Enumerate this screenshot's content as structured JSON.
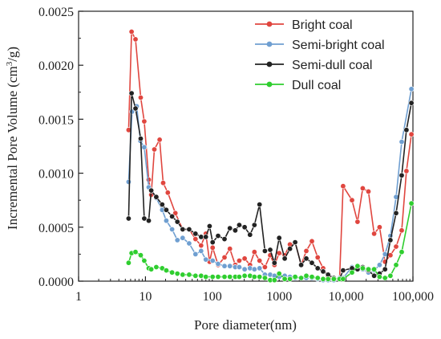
{
  "chart_data": {
    "type": "line",
    "xlabel": "Pore diameter(nm)",
    "ylabel": "Incremental Pore Volume  (cm³/g)",
    "ylabel_main": "Incremental Pore Volume  (cm",
    "ylabel_sup": "3",
    "ylabel_end": "/g)",
    "x_scale": "log",
    "xlim": [
      1,
      100000
    ],
    "ylim": [
      0,
      0.0025
    ],
    "x_ticks": [
      1,
      10,
      100,
      1000,
      10000,
      100000
    ],
    "x_tick_labels": [
      "1",
      "10",
      "100",
      "1000",
      "10,000",
      "100,000"
    ],
    "y_ticks": [
      0,
      0.0005,
      0.001,
      0.0015,
      0.002,
      0.0025
    ],
    "y_tick_labels": [
      "0.0000",
      "0.0005",
      "0.0010",
      "0.0015",
      "0.0020",
      "0.0025"
    ],
    "legend_position": "top-right",
    "series": [
      {
        "name": "Bright coal",
        "color": "#e0463f",
        "x": [
          5.6,
          6.2,
          7.1,
          8.5,
          9.6,
          11.2,
          12.2,
          13.6,
          16.3,
          18.4,
          21.6,
          28,
          36,
          45,
          56,
          68,
          80,
          91,
          101,
          122,
          152,
          183,
          220,
          253,
          304,
          366,
          426,
          509,
          611,
          734,
          850,
          1001,
          1210,
          1449,
          1733,
          2130,
          2545,
          3086,
          3768,
          4534,
          5382,
          6557,
          8000,
          9017,
          12250,
          14830,
          17780,
          21600,
          26300,
          31750,
          38270,
          46000,
          56000,
          68000,
          80000,
          95000
        ],
        "y": [
          0.0014,
          0.00231,
          0.00224,
          0.0017,
          0.00148,
          0.00094,
          0.0008,
          0.00122,
          0.00131,
          0.00091,
          0.00082,
          0.00063,
          0.00048,
          0.00048,
          0.00039,
          0.00033,
          0.00044,
          0.00018,
          0.00031,
          0.00015,
          0.00022,
          0.0003,
          0.00015,
          0.00019,
          0.00021,
          0.00015,
          0.00027,
          0.00019,
          0.00013,
          0.00024,
          0.00015,
          0.00026,
          0.00024,
          0.00034,
          0.00036,
          0.00015,
          0.00028,
          0.00037,
          0.00022,
          0.00012,
          4e-05,
          2e-05,
          2e-05,
          0.00088,
          0.00075,
          0.00055,
          0.00086,
          0.00083,
          0.00044,
          0.0005,
          0.00018,
          0.00024,
          0.00032,
          0.00047,
          0.00102,
          0.00136
        ]
      },
      {
        "name": "Semi-bright coal",
        "color": "#6f9fd1",
        "x": [
          5.6,
          6.3,
          7.4,
          8.4,
          9.6,
          11.2,
          12.2,
          14.5,
          17.8,
          20.5,
          25,
          30,
          36,
          45,
          56,
          68,
          80,
          101,
          122,
          152,
          183,
          220,
          253,
          304,
          366,
          426,
          509,
          611,
          734,
          850,
          1001,
          1210,
          1449,
          1733,
          2130,
          2545,
          3086,
          3768,
          4534,
          5382,
          6557,
          8000,
          9017,
          12250,
          14830,
          17780,
          21600,
          26300,
          31750,
          38270,
          46000,
          56000,
          68000,
          95000
        ],
        "y": [
          0.00092,
          0.00157,
          0.00162,
          0.0013,
          0.00124,
          0.00087,
          0.00084,
          0.00077,
          0.00066,
          0.00056,
          0.00048,
          0.00038,
          0.0004,
          0.00035,
          0.00025,
          0.00028,
          0.0002,
          0.00019,
          0.00016,
          0.00014,
          0.00014,
          0.00013,
          0.00013,
          0.00011,
          0.00012,
          0.00011,
          0.00012,
          6e-05,
          6e-05,
          5e-05,
          4e-05,
          5e-05,
          4e-05,
          3e-05,
          3e-05,
          3e-05,
          3e-05,
          2e-05,
          1e-05,
          1e-05,
          1e-05,
          3e-05,
          3e-05,
          0.00013,
          0.00012,
          0.00011,
          8e-05,
          0.0001,
          0.00015,
          0.00025,
          0.00042,
          0.00078,
          0.00129,
          0.00178
        ]
      },
      {
        "name": "Semi-dull coal",
        "color": "#222222",
        "x": [
          5.6,
          6.2,
          7.1,
          8.5,
          9.6,
          11.2,
          12.2,
          14.5,
          17.8,
          20.5,
          25,
          30,
          36,
          45,
          56,
          68,
          80,
          91,
          101,
          122,
          152,
          183,
          220,
          253,
          304,
          366,
          426,
          509,
          611,
          734,
          850,
          1001,
          1210,
          1449,
          1733,
          2130,
          2545,
          3086,
          3768,
          4534,
          5382,
          6557,
          8000,
          9017,
          12250,
          14830,
          17780,
          21600,
          26300,
          31750,
          38270,
          46000,
          56000,
          68000,
          80000,
          95000
        ],
        "y": [
          0.00058,
          0.00174,
          0.0016,
          0.00132,
          0.00058,
          0.00056,
          0.00084,
          0.00078,
          0.00071,
          0.00066,
          0.0006,
          0.00055,
          0.00048,
          0.00048,
          0.00044,
          0.00041,
          0.00041,
          0.00051,
          0.00036,
          0.00042,
          0.00039,
          0.00049,
          0.00047,
          0.00052,
          0.0005,
          0.00043,
          0.00052,
          0.00071,
          0.00028,
          0.00029,
          0.00017,
          0.0004,
          0.00021,
          0.0003,
          0.00036,
          0.00015,
          0.00021,
          0.00017,
          0.00012,
          9e-05,
          6e-05,
          3e-05,
          2e-05,
          0.0001,
          0.00012,
          0.00011,
          0.00013,
          0.0001,
          5e-05,
          7e-05,
          0.00011,
          0.00038,
          0.00063,
          0.00098,
          0.0014,
          0.00165
        ]
      },
      {
        "name": "Dull coal",
        "color": "#2fce2f",
        "x": [
          5.6,
          6.2,
          7.1,
          8.5,
          9.6,
          11.2,
          12.2,
          14.5,
          17.8,
          20.5,
          25,
          30,
          36,
          45,
          56,
          68,
          80,
          101,
          122,
          152,
          183,
          220,
          253,
          304,
          366,
          426,
          509,
          611,
          734,
          850,
          1001,
          1210,
          1449,
          1733,
          2130,
          2545,
          3086,
          3768,
          4534,
          5382,
          6557,
          8000,
          9017,
          12250,
          14830,
          17780,
          21600,
          26300,
          31750,
          38270,
          46000,
          56000,
          68000,
          95000
        ],
        "y": [
          0.00017,
          0.00026,
          0.00027,
          0.00024,
          0.00019,
          0.00012,
          0.00011,
          0.00013,
          0.00012,
          0.0001,
          8e-05,
          7e-05,
          6e-05,
          6e-05,
          5e-05,
          5e-05,
          4e-05,
          4e-05,
          4e-05,
          4e-05,
          4e-05,
          4e-05,
          4e-05,
          5e-05,
          5e-05,
          4e-05,
          4e-05,
          3e-05,
          1e-05,
          1e-05,
          7e-05,
          2e-05,
          2e-05,
          4e-05,
          3e-05,
          5e-05,
          4e-05,
          3e-05,
          2e-05,
          2e-05,
          2e-05,
          2e-05,
          2e-05,
          8e-05,
          0.00014,
          0.00012,
          0.00011,
          0.00011,
          4e-05,
          3e-05,
          5e-05,
          0.00015,
          0.00027,
          0.00072
        ]
      }
    ]
  }
}
